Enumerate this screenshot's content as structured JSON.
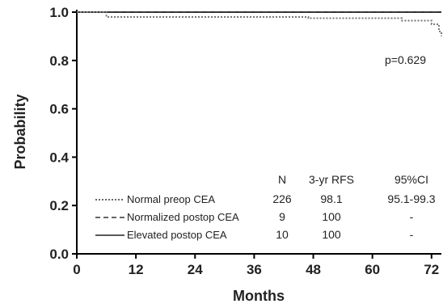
{
  "chart_data": {
    "type": "line",
    "title": "",
    "xlabel": "Months",
    "ylabel": "Probability",
    "xlim": [
      0,
      74
    ],
    "ylim": [
      0,
      1
    ],
    "x_ticks": [
      "0",
      "12",
      "24",
      "36",
      "48",
      "60",
      "72"
    ],
    "y_ticks": [
      "0.0",
      "0.2",
      "0.4",
      "0.6",
      "0.8",
      "1.0"
    ],
    "grid": false,
    "annotation": "p=0.629",
    "table_headers": [
      "N",
      "3-yr RFS",
      "95%CI"
    ],
    "series": [
      {
        "name": "Normal preop CEA",
        "line_style": "dotted",
        "n": "226",
        "rfs": "98.1",
        "ci": "95.1-99.3",
        "steps": [
          [
            0,
            1.0
          ],
          [
            6,
            0.98
          ],
          [
            47,
            0.975
          ],
          [
            66,
            0.965
          ],
          [
            72,
            0.95
          ],
          [
            73.5,
            0.92
          ],
          [
            74,
            0.9
          ]
        ]
      },
      {
        "name": "Normalized postop CEA",
        "line_style": "dashed",
        "n": "9",
        "rfs": "100",
        "ci": "-",
        "steps": [
          [
            0,
            1.0
          ],
          [
            74,
            1.0
          ]
        ]
      },
      {
        "name": "Elevated postop CEA",
        "line_style": "solid",
        "n": "10",
        "rfs": "100",
        "ci": "-",
        "steps": [
          [
            0,
            1.0
          ],
          [
            74,
            1.0
          ]
        ]
      }
    ]
  }
}
